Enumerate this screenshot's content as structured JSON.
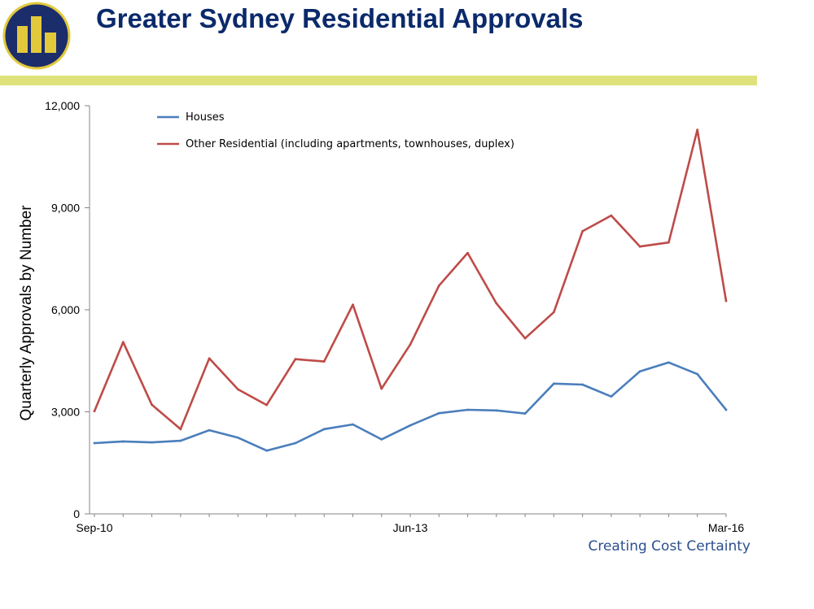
{
  "header": {
    "title": "Greater Sydney Residential Approvals",
    "logo_icon": "building-logo-icon",
    "band_color": "#dfe27a",
    "title_color": "#0b2a6b"
  },
  "footer": {
    "tagline": "Creating Cost Certainty"
  },
  "chart_data": {
    "type": "line",
    "ylabel": "Quarterly Approvals by Number",
    "ylim": [
      0,
      12000
    ],
    "yticks": [
      0,
      3000,
      6000,
      9000,
      12000
    ],
    "ytick_labels": [
      "0",
      "3,000",
      "6,000",
      "9,000",
      "12,000"
    ],
    "xtick_labels": [
      "Sep-10",
      "Jun-13",
      "Mar-16"
    ],
    "xtick_index": [
      0,
      11,
      22
    ],
    "legend_position": "top-left",
    "grid": false,
    "x": [
      "Sep-10",
      "Dec-10",
      "Mar-11",
      "Jun-11",
      "Sep-11",
      "Dec-11",
      "Mar-12",
      "Jun-12",
      "Sep-12",
      "Dec-12",
      "Mar-13",
      "Jun-13",
      "Sep-13",
      "Dec-13",
      "Mar-14",
      "Jun-14",
      "Sep-14",
      "Dec-14",
      "Mar-15",
      "Jun-15",
      "Sep-15",
      "Dec-15",
      "Mar-16"
    ],
    "series": [
      {
        "name": "Houses",
        "color": "#4a7ebb",
        "values": [
          2080,
          2130,
          2100,
          2150,
          2460,
          2240,
          1860,
          2080,
          2490,
          2630,
          2190,
          2600,
          2960,
          3060,
          3040,
          2950,
          3830,
          3800,
          3450,
          4190,
          4450,
          4110,
          3060
        ]
      },
      {
        "name": "Other Residential (including apartments, townhouses, duplex)",
        "color": "#be4b48",
        "values": [
          3020,
          5050,
          3210,
          2490,
          4570,
          3660,
          3200,
          4550,
          4480,
          6150,
          3680,
          4980,
          6710,
          7670,
          6190,
          5160,
          5930,
          8310,
          8770,
          7860,
          7980,
          11290,
          6260
        ]
      }
    ]
  }
}
